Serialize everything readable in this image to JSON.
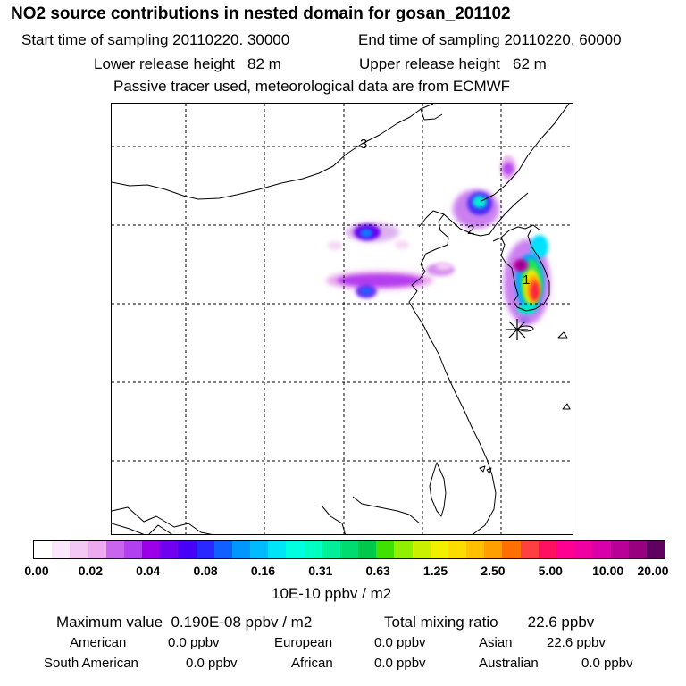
{
  "header": {
    "title": "NO2 source contributions in nested domain for gosan_201102",
    "start_time": "Start time of sampling 20110220. 30000",
    "end_time": "End time of sampling 20110220. 60000",
    "lower_release": "Lower release height   82 m",
    "upper_release": "Upper release height   62 m",
    "tracer_note": "Passive tracer used, meteorological data are from ECMWF"
  },
  "map": {
    "contour_labels": [
      "3",
      "2",
      "1"
    ],
    "receptor_marker": "asterisk-icon"
  },
  "colorbar": {
    "colors": [
      "#ffffff",
      "#fbe6fb",
      "#f4c8f4",
      "#eeaaee",
      "#c864ee",
      "#b040f0",
      "#9c00e8",
      "#7000f0",
      "#4800f8",
      "#2828ff",
      "#1060ff",
      "#0096ff",
      "#00bcff",
      "#00e4f8",
      "#00ffe0",
      "#00ffc0",
      "#00f09a",
      "#00dc70",
      "#00c84c",
      "#40e000",
      "#90f000",
      "#c8f000",
      "#f0f000",
      "#ffdc00",
      "#ffc000",
      "#ffa000",
      "#ff7000",
      "#ff4040",
      "#ff1060",
      "#ff0090",
      "#f000a0",
      "#d800a8",
      "#b80098",
      "#980080",
      "#600060"
    ],
    "tick_labels": [
      "0.00",
      "0.02",
      "0.04",
      "0.08",
      "0.16",
      "0.31",
      "0.63",
      "1.25",
      "2.50",
      "5.00",
      "10.00",
      "20.00"
    ],
    "unit_label": "10E-10 ppbv / m2"
  },
  "stats": {
    "max_value": "Maximum value  0.190E-08 ppbv / m2",
    "total_mixing": "Total mixing ratio       22.6 ppbv",
    "american_label": "American",
    "american_value": "0.0 ppbv",
    "european_label": "European",
    "european_value": "0.0 ppbv",
    "asian_label": "Asian",
    "asian_value": "22.6 ppbv",
    "south_american_label": "South American",
    "south_american_value": "0.0 ppbv",
    "african_label": "African",
    "african_value": "0.0 ppbv",
    "australian_label": "Australian",
    "australian_value": "0.0 ppbv"
  }
}
